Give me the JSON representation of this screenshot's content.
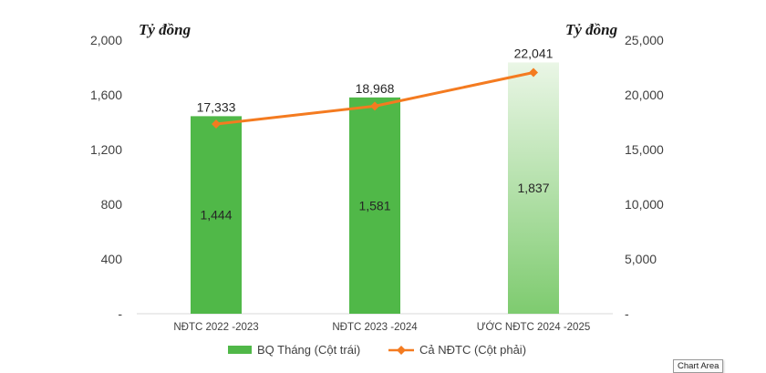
{
  "chart_data": {
    "type": "bar",
    "categories": [
      "NĐTC 2022 -2023",
      "NĐTC 2023 -2024",
      "ƯỚC NĐTC 2024 -2025"
    ],
    "series": [
      {
        "name": "BQ Tháng (Cột trái)",
        "type": "bar",
        "axis": "left",
        "values": [
          1444,
          1581,
          1837
        ],
        "labels": [
          "1,444",
          "1,581",
          "1,837"
        ],
        "color": "#50b848"
      },
      {
        "name": "Cả NĐTC (Cột phải)",
        "type": "line",
        "axis": "right",
        "values": [
          17333,
          18968,
          22041
        ],
        "labels": [
          "17,333",
          "18,968",
          "22,041"
        ],
        "color": "#f47b20"
      }
    ],
    "y_left": {
      "unit_label": "Tỷ đồng",
      "range": [
        0,
        2000
      ],
      "ticks": [
        0,
        400,
        800,
        1200,
        1600,
        2000
      ],
      "tick_labels": [
        "-",
        "400",
        "800",
        "1,200",
        "1,600",
        "2,000"
      ]
    },
    "y_right": {
      "unit_label": "Tỷ đồng",
      "range": [
        0,
        25000
      ],
      "ticks": [
        0,
        5000,
        10000,
        15000,
        20000,
        25000
      ],
      "tick_labels": [
        "-",
        "5,000",
        "10,000",
        "15,000",
        "20,000",
        "25,000"
      ]
    },
    "grid": false,
    "legend": "bottom-center",
    "highlight_bar_color": "#8ccf7f"
  },
  "tooltip": "Chart Area"
}
